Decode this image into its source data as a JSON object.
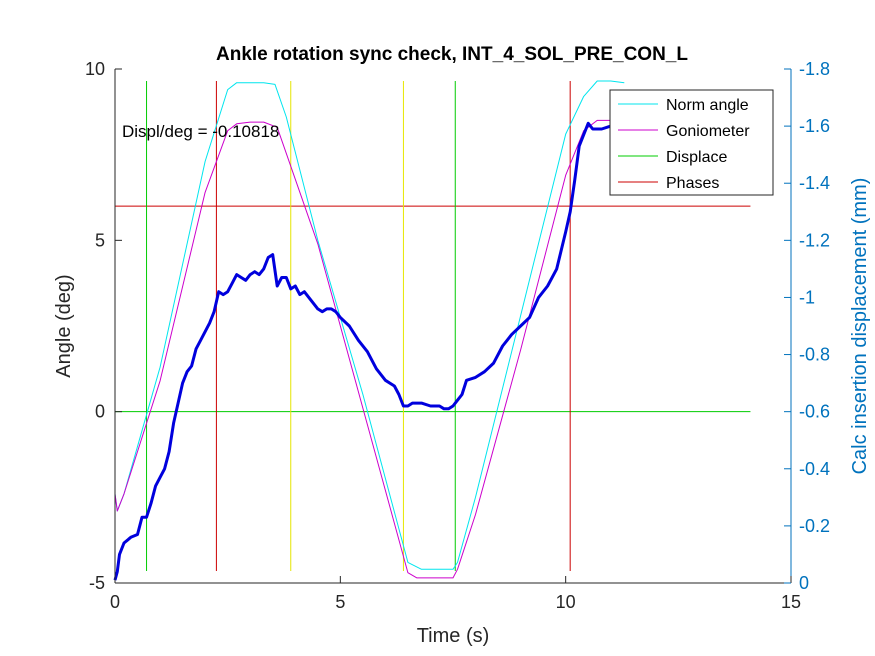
{
  "chart_data": {
    "type": "line",
    "title": "Ankle rotation sync check, INT_4_SOL_PRE_CON_L",
    "xlabel": "Time (s)",
    "ylabel": "Angle (deg)",
    "ylabel_right": "Calc insertion displacement (mm)",
    "xlim": [
      0,
      15
    ],
    "ylim": [
      -5,
      10
    ],
    "ylim_right": [
      0,
      -1.8
    ],
    "x_ticks": [
      "0",
      "5",
      "10",
      "15"
    ],
    "y_ticks": [
      "-5",
      "0",
      "5",
      "10"
    ],
    "y_ticks_right": [
      "0",
      "-0.2",
      "-0.4",
      "-0.6",
      "-0.8",
      "-1",
      "-1.2",
      "-1.4",
      "-1.6",
      "-1.8"
    ],
    "annotation": "Displ/deg = -0.10818",
    "legend_position": "top-right",
    "colors": {
      "norm_angle": "#00e5ee",
      "goniometer": "#cc00cc",
      "displace": "#00cc00",
      "phases": "#cc0000",
      "phases_yellow": "#e6e600",
      "displacement_curve": "#0000dd",
      "right_axis": "#0072bd"
    },
    "series": [
      {
        "name": "Norm angle",
        "axis": "left",
        "x": [
          0,
          0.05,
          0.2,
          1,
          2,
          2.5,
          2.7,
          3,
          3.3,
          3.55,
          3.8,
          4.5,
          5.5,
          6.5,
          6.8,
          7.5,
          7.6,
          8,
          9,
          10,
          10.4,
          10.7,
          11,
          11.3
        ],
        "y": [
          -2.4,
          -2.9,
          -2.4,
          1.3,
          7.3,
          9.4,
          9.6,
          9.6,
          9.6,
          9.55,
          8.6,
          5.0,
          0.5,
          -4.4,
          -4.6,
          -4.6,
          -4.4,
          -2.5,
          2.8,
          8.1,
          9.2,
          9.65,
          9.65,
          9.6
        ]
      },
      {
        "name": "Goniometer",
        "axis": "left",
        "x": [
          0,
          0.05,
          0.2,
          1,
          2,
          2.5,
          2.7,
          3.0,
          3.3,
          3.6,
          4.5,
          5.5,
          6.5,
          6.7,
          7.5,
          7.6,
          8,
          9,
          10,
          10.4,
          10.7,
          11,
          11.3
        ],
        "y": [
          -2.4,
          -2.9,
          -2.4,
          0.9,
          6.4,
          8.2,
          8.4,
          8.45,
          8.45,
          8.3,
          4.9,
          0.1,
          -4.7,
          -4.85,
          -4.85,
          -4.6,
          -3.0,
          1.8,
          6.9,
          8.2,
          8.5,
          8.5,
          8.5
        ]
      },
      {
        "name": "Displace",
        "axis": "left",
        "x": [
          0,
          14.1
        ],
        "y": [
          0,
          0
        ],
        "vertical_x": [
          0.7,
          7.55
        ]
      },
      {
        "name": "Phases",
        "axis": "left",
        "x": [
          0,
          14.1
        ],
        "y": [
          6,
          6
        ],
        "vertical_x": [
          2.25,
          10.1
        ]
      },
      {
        "name": "",
        "axis": "left",
        "vertical_x": [
          3.9,
          6.4
        ]
      },
      {
        "name": "",
        "axis": "right",
        "x": [
          0,
          0.05,
          0.1,
          0.2,
          0.35,
          0.5,
          0.6,
          0.7,
          0.8,
          0.9,
          1.0,
          1.1,
          1.2,
          1.3,
          1.4,
          1.5,
          1.6,
          1.7,
          1.8,
          1.9,
          2.0,
          2.1,
          2.2,
          2.3,
          2.4,
          2.5,
          2.6,
          2.7,
          2.8,
          2.9,
          3.0,
          3.1,
          3.2,
          3.3,
          3.4,
          3.5,
          3.6,
          3.7,
          3.8,
          3.9,
          4.0,
          4.1,
          4.2,
          4.3,
          4.4,
          4.5,
          4.6,
          4.7,
          4.8,
          4.9,
          5.0,
          5.2,
          5.4,
          5.6,
          5.8,
          6.0,
          6.2,
          6.3,
          6.4,
          6.5,
          6.6,
          6.8,
          7.0,
          7.2,
          7.3,
          7.4,
          7.5,
          7.6,
          7.7,
          7.8,
          8.0,
          8.2,
          8.4,
          8.6,
          8.8,
          9.0,
          9.2,
          9.4,
          9.6,
          9.8,
          10.0,
          10.1,
          10.2,
          10.3,
          10.4,
          10.5,
          10.6,
          10.8,
          11.0
        ],
        "y": [
          -0.01,
          -0.04,
          -0.1,
          -0.14,
          -0.16,
          -0.17,
          -0.23,
          -0.23,
          -0.28,
          -0.34,
          -0.37,
          -0.4,
          -0.46,
          -0.56,
          -0.63,
          -0.7,
          -0.74,
          -0.76,
          -0.82,
          -0.85,
          -0.88,
          -0.91,
          -0.95,
          -1.02,
          -1.01,
          -1.02,
          -1.05,
          -1.08,
          -1.07,
          -1.06,
          -1.08,
          -1.09,
          -1.08,
          -1.1,
          -1.14,
          -1.15,
          -1.04,
          -1.07,
          -1.07,
          -1.03,
          -1.04,
          -1.01,
          -1.02,
          -1.0,
          -0.98,
          -0.96,
          -0.95,
          -0.96,
          -0.96,
          -0.95,
          -0.93,
          -0.9,
          -0.85,
          -0.81,
          -0.75,
          -0.71,
          -0.69,
          -0.66,
          -0.62,
          -0.62,
          -0.63,
          -0.63,
          -0.62,
          -0.62,
          -0.61,
          -0.61,
          -0.62,
          -0.64,
          -0.66,
          -0.71,
          -0.72,
          -0.74,
          -0.77,
          -0.83,
          -0.87,
          -0.9,
          -0.93,
          -1.0,
          -1.04,
          -1.1,
          -1.23,
          -1.3,
          -1.41,
          -1.53,
          -1.57,
          -1.61,
          -1.59,
          -1.59,
          -1.6
        ]
      }
    ]
  }
}
